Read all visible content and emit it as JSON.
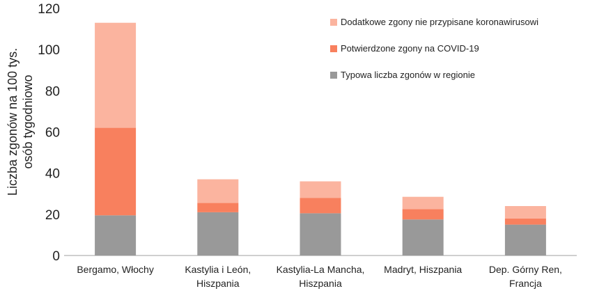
{
  "chart_data": {
    "type": "bar",
    "stacked": true,
    "categories": [
      [
        "Bergamo, Włochy"
      ],
      [
        "Kastylia i León,",
        "Hiszpania"
      ],
      [
        "Kastylia-La Mancha,",
        "Hiszpania"
      ],
      [
        "Madryt, Hiszpania"
      ],
      [
        "Dep. Górny Ren,",
        "Francja"
      ]
    ],
    "series": [
      {
        "name": "Typowa liczba zgonów w regionie",
        "color": "#999999",
        "values": [
          19.5,
          21,
          20.5,
          17.5,
          15
        ]
      },
      {
        "name": "Potwierdzone zgony na COVID-19",
        "color": "#f8805e",
        "values": [
          42.5,
          4.5,
          7.5,
          5,
          3
        ]
      },
      {
        "name": "Dodatkowe zgony nie przypisane koronawirusowi",
        "color": "#fbb49f",
        "values": [
          51,
          11.5,
          8,
          6,
          6
        ]
      }
    ],
    "ylabel": [
      "Liczba zgonów na 100 tys.",
      "osób tygodniowo"
    ],
    "yticks": [
      0,
      20,
      40,
      60,
      80,
      100,
      120
    ],
    "ylim": [
      0,
      120
    ],
    "grid": false,
    "legend_position": "top-right"
  }
}
